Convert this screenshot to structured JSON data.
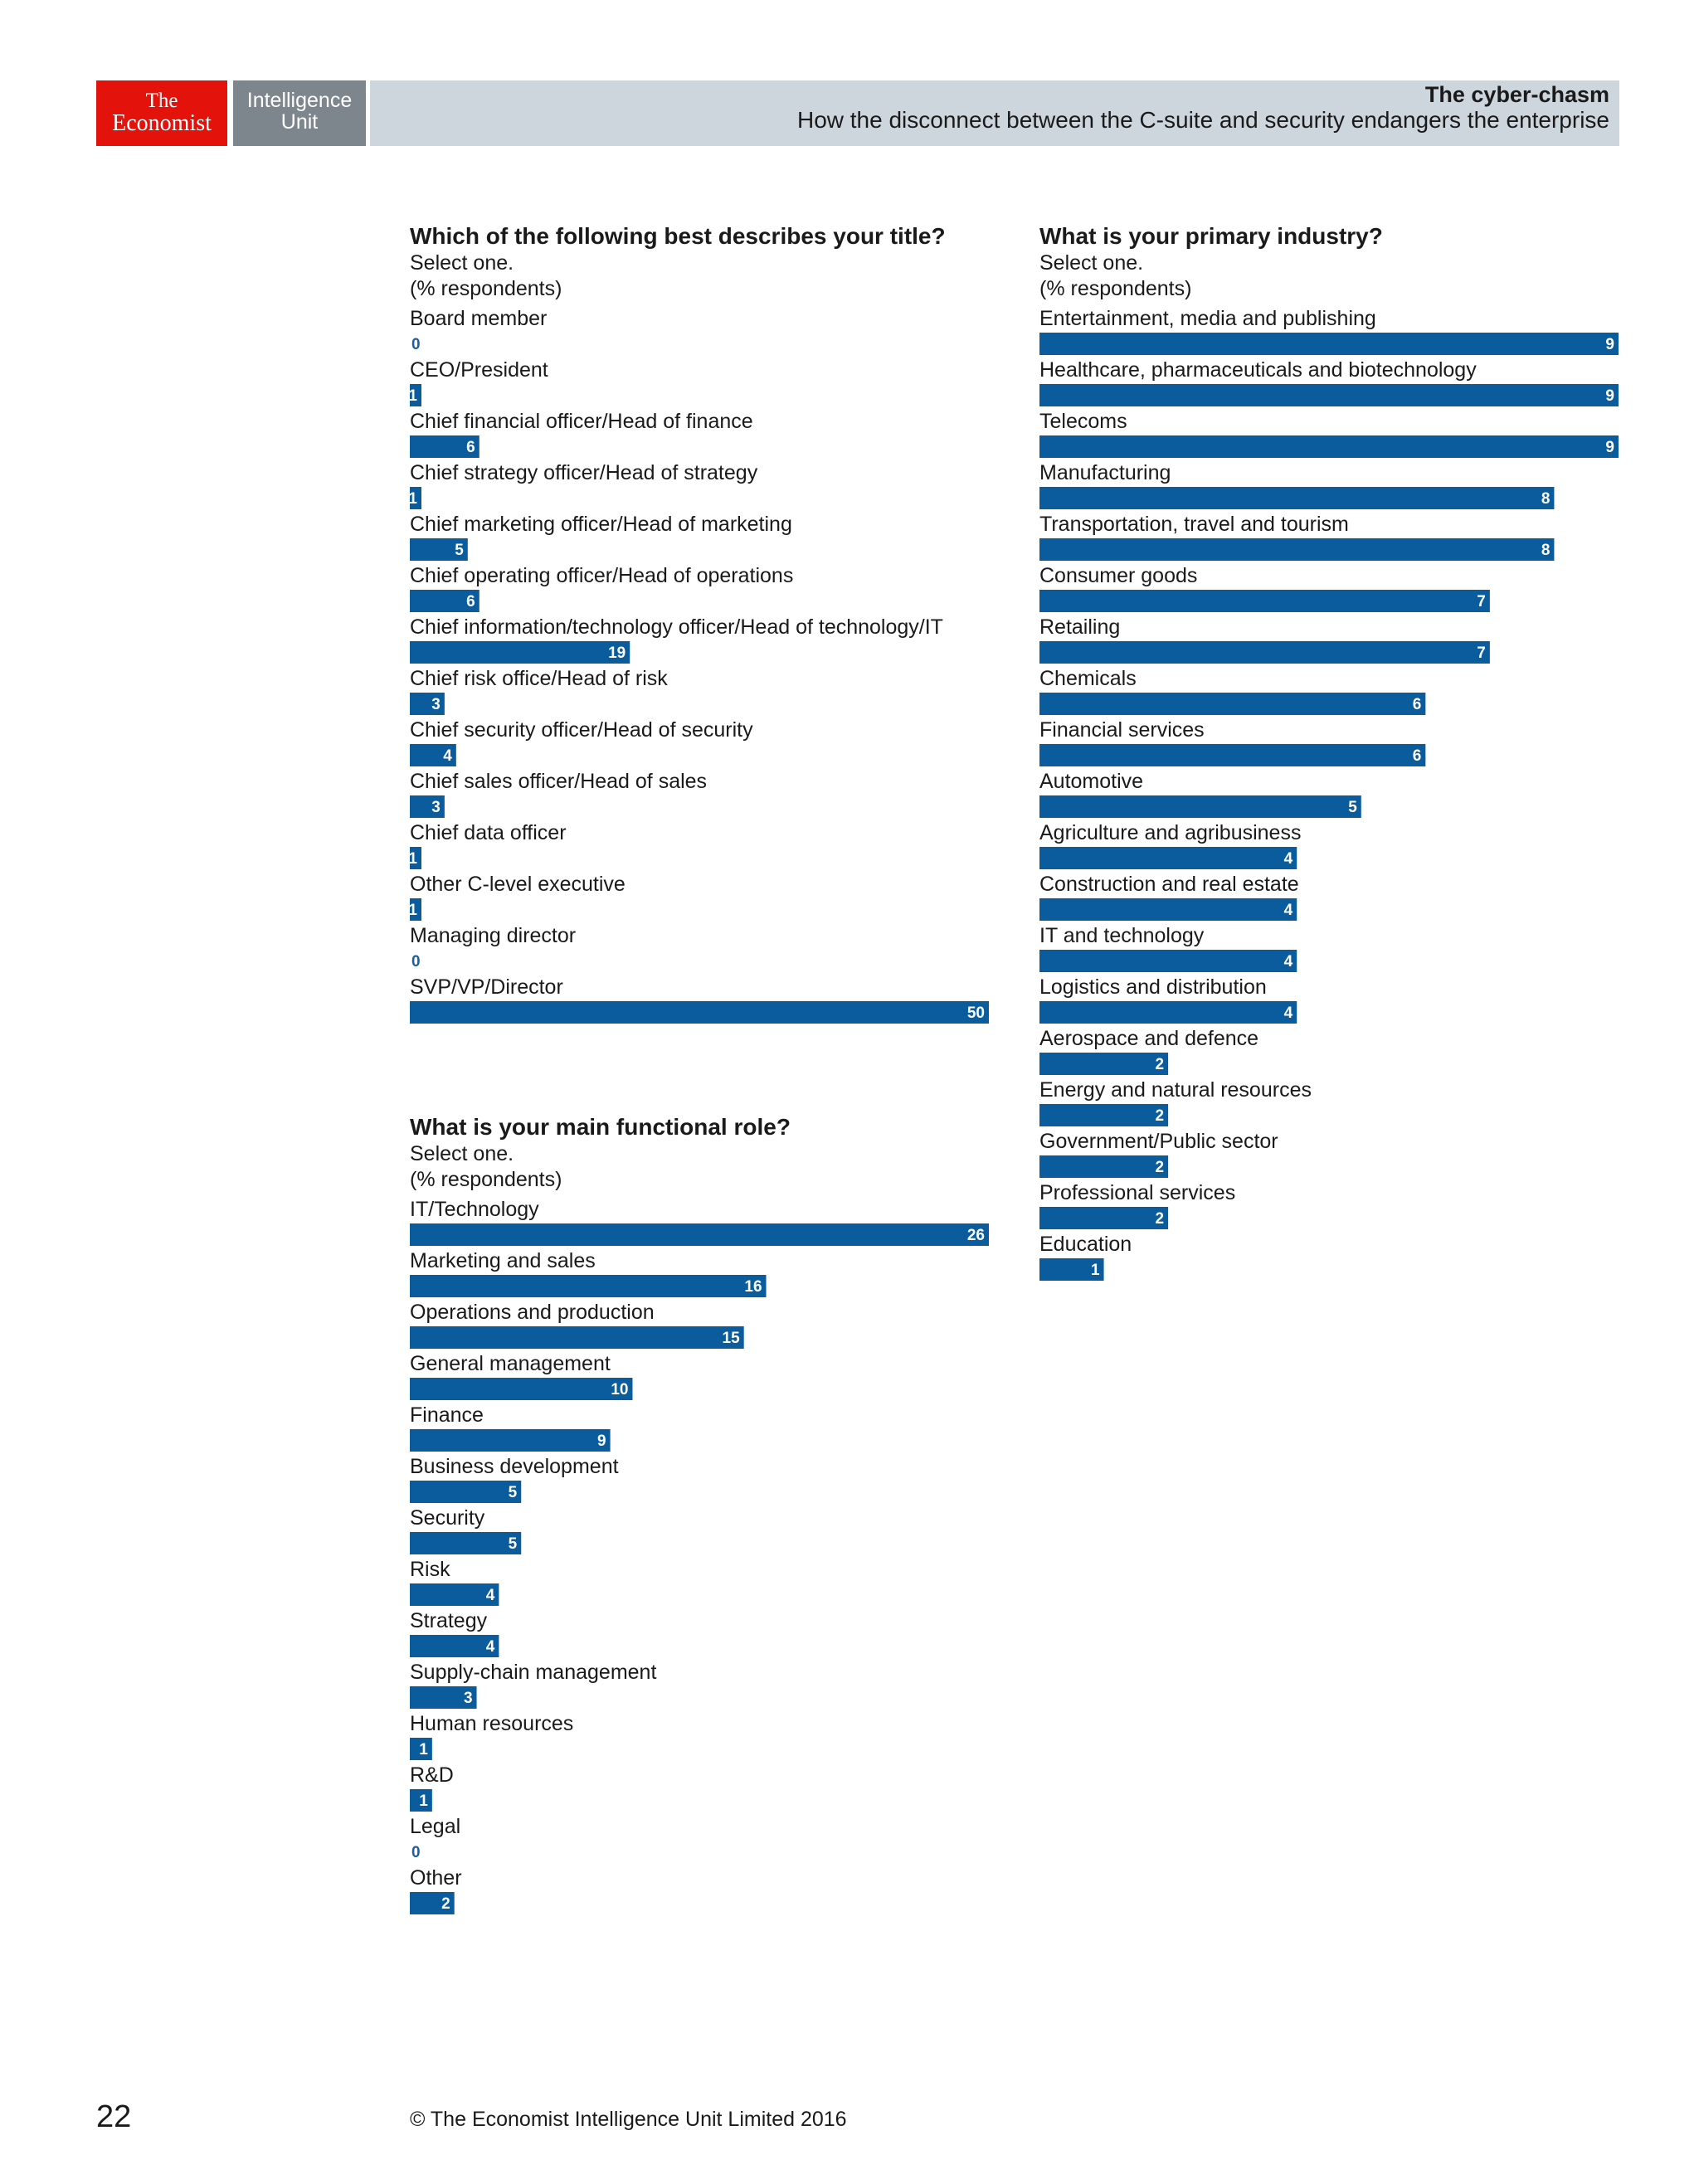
{
  "header": {
    "logo_line1": "The",
    "logo_line2": "Economist",
    "unit_line1": "Intelligence",
    "unit_line2": "Unit",
    "report_title": "The cyber-chasm",
    "report_subtitle": "How the disconnect between the C-suite and security endangers the enterprise"
  },
  "colors": {
    "bar": "#0a5c9c",
    "economist_red": "#e3120b",
    "unit_grey": "#7d868c",
    "header_band": "#cdd5dd"
  },
  "chart_data": [
    {
      "type": "bar",
      "orientation": "horizontal",
      "title": "Which of the following best describes your title?",
      "subtitle": "Select one.",
      "unit_note": "(% respondents)",
      "categories": [
        "Board member",
        "CEO/President",
        "Chief financial officer/Head of finance",
        "Chief strategy officer/Head of strategy",
        "Chief marketing officer/Head of marketing",
        "Chief operating officer/Head of operations",
        "Chief information/technology officer/Head of technology/IT",
        "Chief risk office/Head of risk",
        "Chief security officer/Head of security",
        "Chief sales officer/Head of sales",
        "Chief data officer",
        "Other C-level executive",
        "Managing director",
        "SVP/VP/Director"
      ],
      "values": [
        0,
        1,
        6,
        1,
        5,
        6,
        19,
        3,
        4,
        3,
        1,
        1,
        0,
        50
      ],
      "xlim": [
        0,
        50
      ]
    },
    {
      "type": "bar",
      "orientation": "horizontal",
      "title": "What is your main functional role?",
      "subtitle": "Select one.",
      "unit_note": "(% respondents)",
      "categories": [
        "IT/Technology",
        "Marketing and sales",
        "Operations and production",
        "General management",
        "Finance",
        "Business development",
        "Security",
        "Risk",
        "Strategy",
        "Supply-chain management",
        "Human resources",
        "R&D",
        "Legal",
        "Other"
      ],
      "values": [
        26,
        16,
        15,
        10,
        9,
        5,
        5,
        4,
        4,
        3,
        1,
        1,
        0,
        2
      ],
      "xlim": [
        0,
        26
      ]
    },
    {
      "type": "bar",
      "orientation": "horizontal",
      "title": "What is your primary industry?",
      "subtitle": "Select one.",
      "unit_note": "(% respondents)",
      "categories": [
        "Entertainment, media and publishing",
        "Healthcare, pharmaceuticals and biotechnology",
        "Telecoms",
        "Manufacturing",
        "Transportation, travel and tourism",
        "Consumer goods",
        "Retailing",
        "Chemicals",
        "Financial services",
        "Automotive",
        "Agriculture and agribusiness",
        "Construction and real estate",
        "IT and technology",
        "Logistics and distribution",
        "Aerospace and defence",
        "Energy and natural resources",
        "Government/Public sector",
        "Professional services",
        "Education"
      ],
      "values": [
        9,
        9,
        9,
        8,
        8,
        7,
        7,
        6,
        6,
        5,
        4,
        4,
        4,
        4,
        2,
        2,
        2,
        2,
        1
      ],
      "xlim": [
        0,
        9
      ]
    }
  ],
  "footer": {
    "page_number": "22",
    "copyright": "© The Economist Intelligence Unit Limited 2016"
  }
}
